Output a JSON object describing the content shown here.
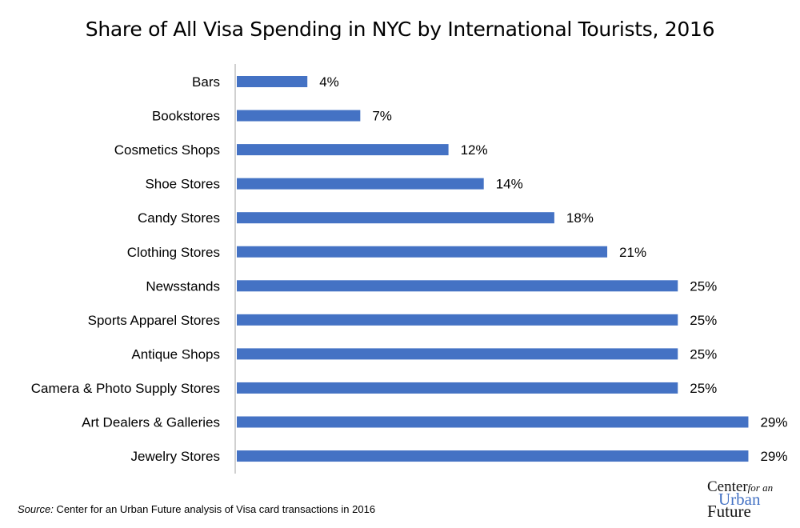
{
  "chart_data": {
    "type": "bar",
    "orientation": "horizontal",
    "title": "Share of All Visa Spending in NYC by International Tourists, 2016",
    "categories": [
      "Bars",
      "Bookstores",
      "Cosmetics Shops",
      "Shoe Stores",
      "Candy Stores",
      "Clothing Stores",
      "Newsstands",
      "Sports Apparel Stores",
      "Antique Shops",
      "Camera & Photo Supply Stores",
      "Art Dealers & Galleries",
      "Jewelry Stores"
    ],
    "values": [
      4,
      7,
      12,
      14,
      18,
      21,
      25,
      25,
      25,
      25,
      29,
      29
    ],
    "data_labels": [
      "4%",
      "7%",
      "12%",
      "14%",
      "18%",
      "21%",
      "25%",
      "25%",
      "25%",
      "25%",
      "29%",
      "29%"
    ],
    "unit": "%",
    "bar_color": "#4472c4",
    "grid": false,
    "xlim": [
      0,
      29
    ]
  },
  "source": {
    "prefix": "Source:",
    "text": " Center for an Urban Future analysis of Visa card transactions in 2016"
  },
  "logo": {
    "line1": "Center",
    "line1b": "for an",
    "line2": "Urban",
    "line3": "Future"
  }
}
